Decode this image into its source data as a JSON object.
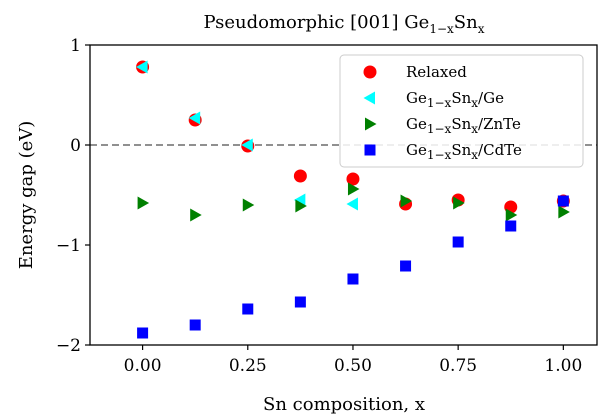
{
  "chart_data": {
    "type": "scatter",
    "title_parts": {
      "base": "Pseudomorphic [001] Ge",
      "sub": "1−x",
      "mid": "Sn",
      "sub2": "x"
    },
    "xlabel": "Sn composition, x",
    "ylabel": "Energy gap (eV)",
    "xlim": [
      -0.125,
      1.08
    ],
    "ylim": [
      -2.0,
      1.0
    ],
    "xticks": [
      0.0,
      0.25,
      0.5,
      0.75,
      1.0
    ],
    "xtick_labels": [
      "0.00",
      "0.25",
      "0.50",
      "0.75",
      "1.00"
    ],
    "yticks": [
      -2,
      -1,
      0,
      1
    ],
    "ytick_labels": [
      "−2",
      "−1",
      "0",
      "1"
    ],
    "reference_line": {
      "y": 0,
      "style": "dashed",
      "color": "#808080"
    },
    "grid": false,
    "legend_position": "top-right",
    "series": [
      {
        "name": "Relaxed",
        "label_parts": {
          "base": "Relaxed"
        },
        "marker": "circle",
        "color": "#ff0000",
        "x": [
          0.0,
          0.125,
          0.25,
          0.375,
          0.5,
          0.625,
          0.75,
          0.875,
          1.0
        ],
        "y": [
          0.78,
          0.25,
          -0.01,
          -0.31,
          -0.34,
          -0.59,
          -0.55,
          -0.62,
          -0.56
        ]
      },
      {
        "name": "Ge1−xSnx/Ge",
        "label_parts": {
          "base": "Ge",
          "sub": "1−x",
          "mid": "Sn",
          "sub2": "x",
          "tail": "/Ge"
        },
        "marker": "triangle-left",
        "color": "#00ffff",
        "x": [
          0.0,
          0.125,
          0.25,
          0.375,
          0.5
        ],
        "y": [
          0.78,
          0.27,
          0.0,
          -0.55,
          -0.59
        ]
      },
      {
        "name": "Ge1−xSnx/ZnTe",
        "label_parts": {
          "base": "Ge",
          "sub": "1−x",
          "mid": "Sn",
          "sub2": "x",
          "tail": "/ZnTe"
        },
        "marker": "triangle-right",
        "color": "#008000",
        "x": [
          0.0,
          0.125,
          0.25,
          0.375,
          0.5,
          0.625,
          0.75,
          0.875,
          1.0
        ],
        "y": [
          -0.58,
          -0.7,
          -0.6,
          -0.61,
          -0.44,
          -0.56,
          -0.58,
          -0.7,
          -0.67
        ]
      },
      {
        "name": "Ge1−xSnx/CdTe",
        "label_parts": {
          "base": "Ge",
          "sub": "1−x",
          "mid": "Sn",
          "sub2": "x",
          "tail": "/CdTe"
        },
        "marker": "square",
        "color": "#0000ff",
        "x": [
          0.0,
          0.125,
          0.25,
          0.375,
          0.5,
          0.625,
          0.75,
          0.875,
          1.0
        ],
        "y": [
          -1.88,
          -1.8,
          -1.64,
          -1.57,
          -1.34,
          -1.21,
          -0.97,
          -0.81,
          -0.56
        ]
      }
    ]
  }
}
